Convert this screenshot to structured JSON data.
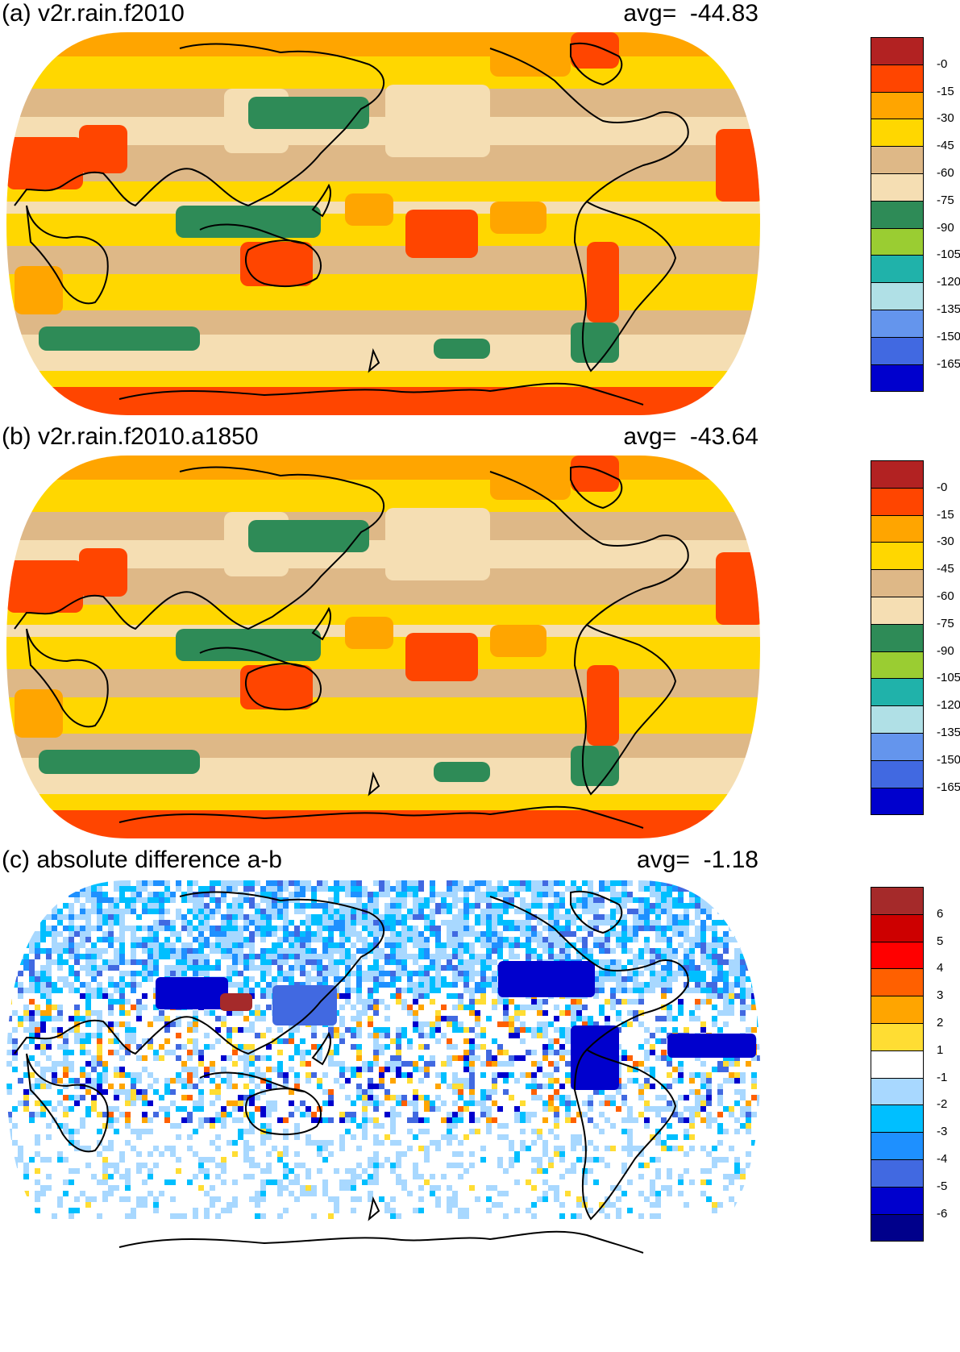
{
  "panels": [
    {
      "title": "(a) v2r.rain.f2010",
      "avg_label": "avg=",
      "avg_value": "-44.83",
      "kind": "abs",
      "colorbar": {
        "colors": [
          "#b22222",
          "#ff4500",
          "#ffa500",
          "#ffd700",
          "#deb887",
          "#f5deb3",
          "#2e8b57",
          "#9acd32",
          "#20b2aa",
          "#b0e0e6",
          "#6495ed",
          "#4169e1",
          "#0000cd"
        ],
        "labels": [
          "-0",
          "-15",
          "-30",
          "-45",
          "-60",
          "-75",
          "-90",
          "-105",
          "-120",
          "-135",
          "-150",
          "-165"
        ]
      }
    },
    {
      "title": "(b) v2r.rain.f2010.a1850",
      "avg_label": "avg=",
      "avg_value": "-43.64",
      "kind": "abs",
      "colorbar": {
        "colors": [
          "#b22222",
          "#ff4500",
          "#ffa500",
          "#ffd700",
          "#deb887",
          "#f5deb3",
          "#2e8b57",
          "#9acd32",
          "#20b2aa",
          "#b0e0e6",
          "#6495ed",
          "#4169e1",
          "#0000cd"
        ],
        "labels": [
          "-0",
          "-15",
          "-30",
          "-45",
          "-60",
          "-75",
          "-90",
          "-105",
          "-120",
          "-135",
          "-150",
          "-165"
        ]
      }
    },
    {
      "title": "(c) absolute difference a-b",
      "avg_label": "avg=",
      "avg_value": "-1.18",
      "kind": "diff",
      "colorbar": {
        "colors": [
          "#a52a2a",
          "#cd0000",
          "#ff0000",
          "#ff6000",
          "#ffa500",
          "#ffdd33",
          "#ffffff",
          "#a8d8ff",
          "#00bfff",
          "#1e90ff",
          "#4169e1",
          "#0000cd",
          "#00008b"
        ],
        "labels": [
          "6",
          "5",
          "4",
          "3",
          "2",
          "1",
          "-1",
          "-2",
          "-3",
          "-4",
          "-5",
          "-6"
        ]
      }
    }
  ]
}
